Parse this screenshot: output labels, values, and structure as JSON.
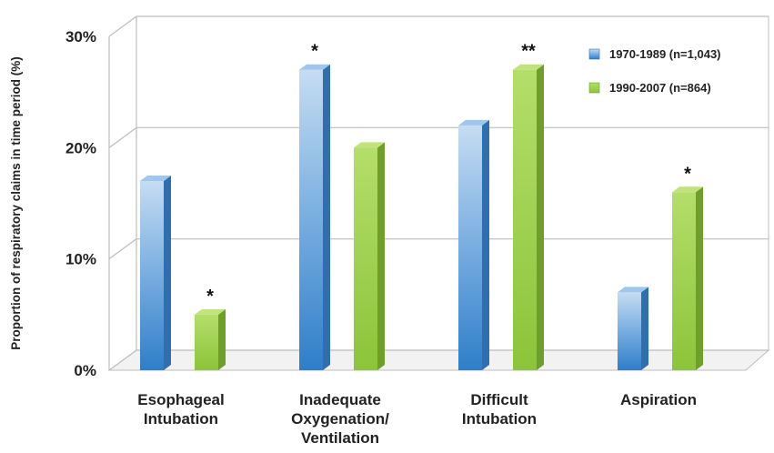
{
  "chart_data": {
    "type": "bar",
    "title": "",
    "xlabel": "",
    "ylabel": "Proportion of respiratory claims in time period (%)",
    "ylim": [
      0,
      30
    ],
    "yticks": [
      "0%",
      "10%",
      "20%",
      "30%"
    ],
    "grid": true,
    "legend_position": "top-right",
    "categories": [
      [
        "Esophageal",
        "Intubation"
      ],
      [
        "Inadequate",
        "Oxygenation/",
        "Ventilation"
      ],
      [
        "Difficult",
        "Intubation"
      ],
      [
        "Aspiration"
      ]
    ],
    "series": [
      {
        "name": "1970-1989 (n=1,043)",
        "color": "#5b9bd5",
        "values": [
          17,
          27,
          22,
          7
        ],
        "annotations": [
          "",
          "*",
          "",
          ""
        ]
      },
      {
        "name": "1990-2007 (n=864)",
        "color": "#92c83e",
        "values": [
          5,
          20,
          27,
          16
        ],
        "annotations": [
          "*",
          "",
          "**",
          "*"
        ]
      }
    ]
  }
}
